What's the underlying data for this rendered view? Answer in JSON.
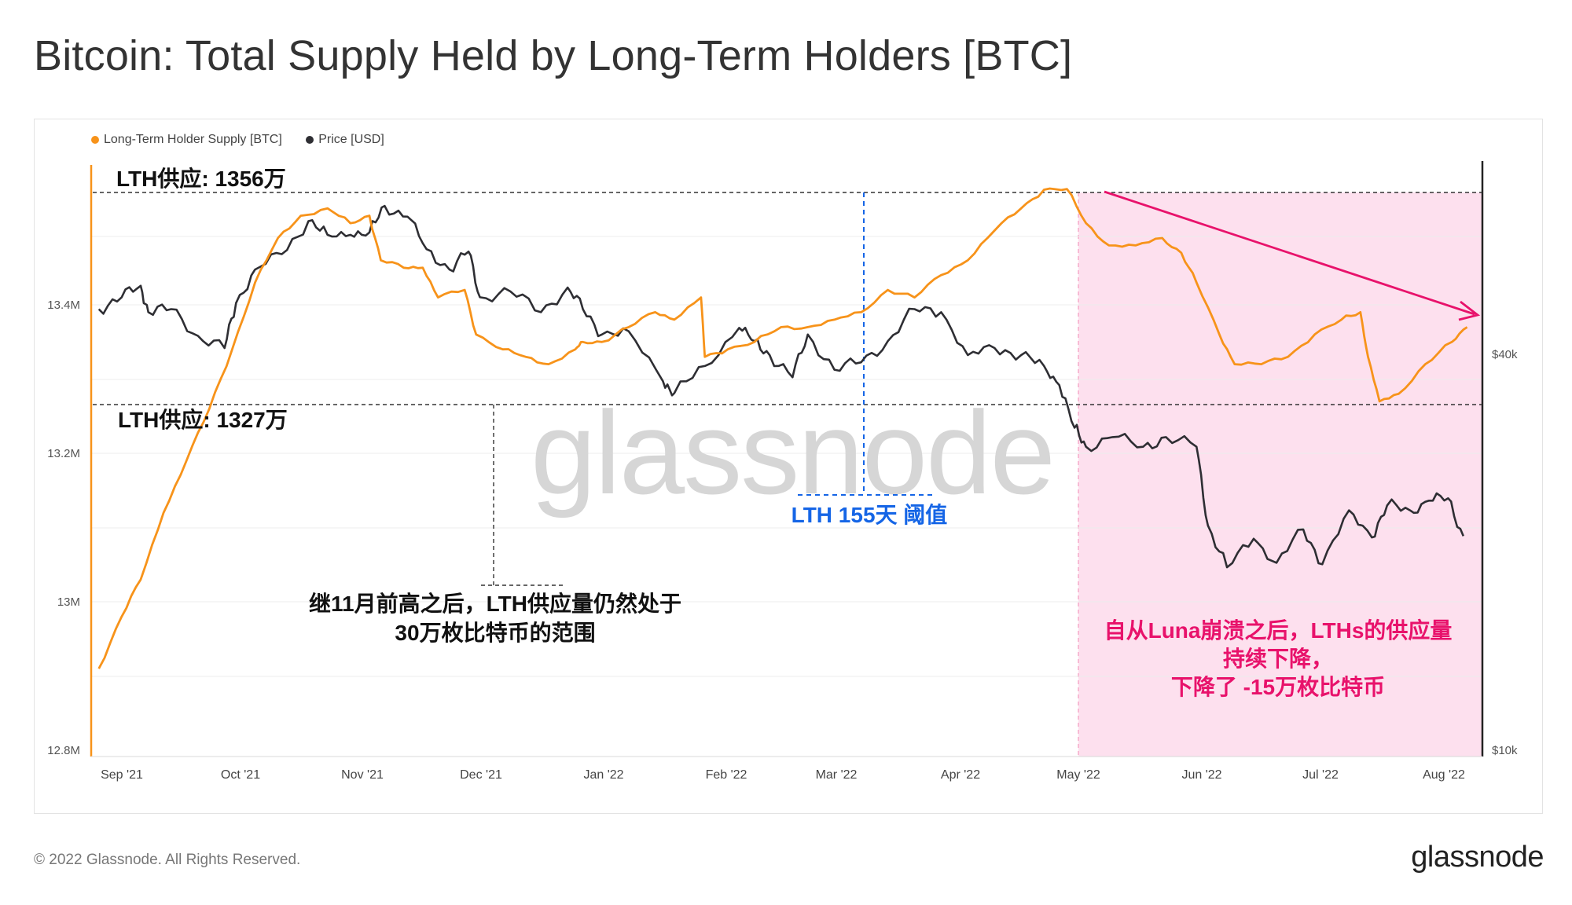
{
  "title": "Bitcoin: Total Supply Held by Long-Term Holders [BTC]",
  "footer": {
    "copyright": "© 2022 Glassnode. All Rights Reserved.",
    "logo": "glassnode"
  },
  "colors": {
    "lth": "#f7931a",
    "price": "#2e2e33",
    "accent_pink": "#e8126b",
    "accent_blue": "#1565e6",
    "shade": "#fde0ee"
  },
  "chart_data": {
    "type": "line",
    "title": "Bitcoin: Total Supply Held by Long-Term Holders [BTC]",
    "legend": [
      "Long-Term Holder Supply [BTC]",
      "Price [USD]"
    ],
    "x_ticks": [
      "Sep '21",
      "Oct '21",
      "Nov '21",
      "Dec '21",
      "Jan '22",
      "Feb '22",
      "Mar '22",
      "Apr '22",
      "May '22",
      "Jun '22",
      "Jul '22",
      "Aug '22"
    ],
    "y_left_ticks": [
      "13.4M",
      "13.2M",
      "13M",
      "12.8M"
    ],
    "y_right_ticks": [
      "$40k",
      "$10k"
    ],
    "y_left_range": [
      12.8,
      13.58
    ],
    "y_right_scale": "log",
    "series": [
      {
        "name": "Long-Term Holder Supply [BTC]",
        "unit": "millions BTC",
        "points": [
          [
            "2021-08-26",
            12.91
          ],
          [
            "2021-09-01",
            12.98
          ],
          [
            "2021-09-06",
            13.03
          ],
          [
            "2021-09-12",
            13.12
          ],
          [
            "2021-09-18",
            13.19
          ],
          [
            "2021-09-24",
            13.26
          ],
          [
            "2021-09-30",
            13.34
          ],
          [
            "2021-10-06",
            13.43
          ],
          [
            "2021-10-12",
            13.49
          ],
          [
            "2021-10-18",
            13.52
          ],
          [
            "2021-10-25",
            13.53
          ],
          [
            "2021-10-31",
            13.51
          ],
          [
            "2021-11-05",
            13.52
          ],
          [
            "2021-11-08",
            13.46
          ],
          [
            "2021-11-14",
            13.45
          ],
          [
            "2021-11-19",
            13.45
          ],
          [
            "2021-11-23",
            13.41
          ],
          [
            "2021-11-30",
            13.42
          ],
          [
            "2021-12-03",
            13.36
          ],
          [
            "2021-12-10",
            13.34
          ],
          [
            "2021-12-16",
            13.33
          ],
          [
            "2021-12-22",
            13.32
          ],
          [
            "2021-12-29",
            13.34
          ],
          [
            "2021-12-31",
            13.35
          ],
          [
            "2022-01-05",
            13.35
          ],
          [
            "2022-01-12",
            13.37
          ],
          [
            "2022-01-19",
            13.39
          ],
          [
            "2022-01-24",
            13.38
          ],
          [
            "2022-01-31",
            13.41
          ],
          [
            "2022-02-01",
            13.33
          ],
          [
            "2022-02-07",
            13.34
          ],
          [
            "2022-02-14",
            13.35
          ],
          [
            "2022-02-21",
            13.37
          ],
          [
            "2022-02-28",
            13.37
          ],
          [
            "2022-03-07",
            13.38
          ],
          [
            "2022-03-14",
            13.39
          ],
          [
            "2022-03-21",
            13.42
          ],
          [
            "2022-03-28",
            13.41
          ],
          [
            "2022-04-04",
            13.44
          ],
          [
            "2022-04-11",
            13.46
          ],
          [
            "2022-04-18",
            13.5
          ],
          [
            "2022-04-25",
            13.53
          ],
          [
            "2022-05-01",
            13.555
          ],
          [
            "2022-05-07",
            13.556
          ],
          [
            "2022-05-12",
            13.51
          ],
          [
            "2022-05-18",
            13.48
          ],
          [
            "2022-05-25",
            13.48
          ],
          [
            "2022-06-01",
            13.49
          ],
          [
            "2022-06-06",
            13.47
          ],
          [
            "2022-06-10",
            13.43
          ],
          [
            "2022-06-16",
            13.36
          ],
          [
            "2022-06-20",
            13.32
          ],
          [
            "2022-06-27",
            13.32
          ],
          [
            "2022-07-04",
            13.33
          ],
          [
            "2022-07-11",
            13.36
          ],
          [
            "2022-07-18",
            13.38
          ],
          [
            "2022-07-23",
            13.39
          ],
          [
            "2022-07-25",
            13.33
          ],
          [
            "2022-07-28",
            13.27
          ],
          [
            "2022-08-02",
            13.28
          ],
          [
            "2022-08-09",
            13.32
          ],
          [
            "2022-08-16",
            13.35
          ],
          [
            "2022-08-20",
            13.37
          ]
        ]
      },
      {
        "name": "Price [USD]",
        "unit": "USD",
        "points": [
          [
            "2021-08-26",
            47000
          ],
          [
            "2021-09-01",
            49000
          ],
          [
            "2021-09-06",
            51000
          ],
          [
            "2021-09-08",
            46500
          ],
          [
            "2021-09-14",
            47000
          ],
          [
            "2021-09-21",
            42800
          ],
          [
            "2021-09-28",
            41000
          ],
          [
            "2021-10-01",
            48000
          ],
          [
            "2021-10-06",
            54000
          ],
          [
            "2021-10-13",
            57000
          ],
          [
            "2021-10-20",
            64000
          ],
          [
            "2021-10-25",
            61000
          ],
          [
            "2021-10-31",
            61000
          ],
          [
            "2021-11-05",
            61500
          ],
          [
            "2021-11-09",
            67500
          ],
          [
            "2021-11-15",
            65000
          ],
          [
            "2021-11-20",
            58000
          ],
          [
            "2021-11-26",
            54000
          ],
          [
            "2021-12-01",
            57500
          ],
          [
            "2021-12-04",
            49000
          ],
          [
            "2021-12-12",
            50000
          ],
          [
            "2021-12-20",
            46500
          ],
          [
            "2021-12-27",
            50700
          ],
          [
            "2021-12-31",
            47000
          ],
          [
            "2022-01-05",
            43000
          ],
          [
            "2022-01-12",
            43500
          ],
          [
            "2022-01-21",
            36500
          ],
          [
            "2022-01-24",
            35000
          ],
          [
            "2022-02-01",
            38500
          ],
          [
            "2022-02-10",
            44000
          ],
          [
            "2022-02-14",
            42000
          ],
          [
            "2022-02-18",
            40000
          ],
          [
            "2022-02-24",
            37000
          ],
          [
            "2022-02-28",
            43000
          ],
          [
            "2022-03-07",
            38000
          ],
          [
            "2022-03-14",
            39000
          ],
          [
            "2022-03-21",
            42000
          ],
          [
            "2022-03-28",
            47000
          ],
          [
            "2022-04-04",
            46500
          ],
          [
            "2022-04-11",
            40000
          ],
          [
            "2022-04-18",
            41000
          ],
          [
            "2022-04-25",
            40000
          ],
          [
            "2022-05-01",
            38500
          ],
          [
            "2022-05-05",
            36000
          ],
          [
            "2022-05-09",
            31000
          ],
          [
            "2022-05-12",
            29000
          ],
          [
            "2022-05-19",
            30000
          ],
          [
            "2022-05-27",
            29000
          ],
          [
            "2022-06-02",
            30000
          ],
          [
            "2022-06-10",
            29000
          ],
          [
            "2022-06-13",
            22000
          ],
          [
            "2022-06-18",
            19000
          ],
          [
            "2022-06-25",
            21000
          ],
          [
            "2022-07-01",
            19300
          ],
          [
            "2022-07-08",
            21700
          ],
          [
            "2022-07-13",
            19200
          ],
          [
            "2022-07-20",
            23200
          ],
          [
            "2022-07-26",
            21100
          ],
          [
            "2022-07-30",
            23600
          ],
          [
            "2022-08-05",
            23200
          ],
          [
            "2022-08-10",
            24000
          ],
          [
            "2022-08-15",
            24200
          ],
          [
            "2022-08-19",
            21200
          ]
        ]
      }
    ],
    "annotations": {
      "top_line": "LTH供应: 1356万",
      "bottom_line": "LTH供应: 1327万",
      "threshold": "LTH 155天 阈值",
      "note_left": [
        "继11月前高之后，LTH供应量仍然处于",
        "30万枚比特币的范围"
      ],
      "note_right": [
        "自从Luna崩溃之后，LTHs的供应量",
        "持续下降，",
        "下降了 -15万枚比特币"
      ],
      "watermark": "glassnode"
    }
  }
}
